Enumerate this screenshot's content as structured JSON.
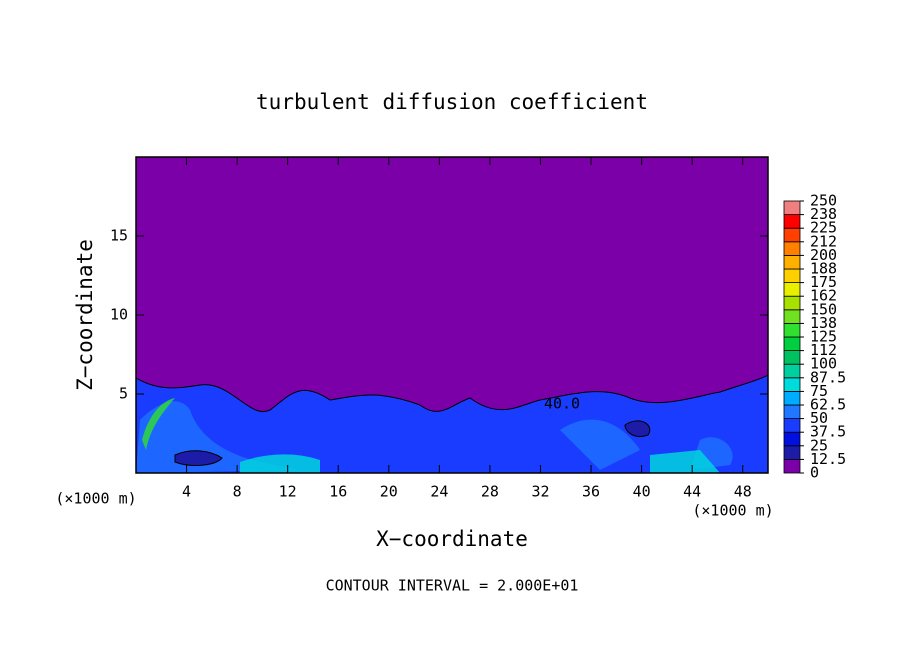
{
  "chart_data": {
    "type": "contour",
    "title": "turbulent diffusion coefficient",
    "xlabel": "X−coordinate",
    "ylabel": "Z−coordinate",
    "x_unit_label": "(×1000 m)",
    "x_unit_label_right": "(×1000 m)",
    "annotation": "CONTOUR INTERVAL = 2.000E+01",
    "contour_label": "40.0",
    "xlim": [
      0,
      50
    ],
    "xticks": [
      4,
      8,
      12,
      16,
      20,
      24,
      28,
      32,
      36,
      40,
      44,
      48
    ],
    "ylim": [
      0,
      20
    ],
    "yticks": [
      5,
      10,
      15
    ],
    "clim": [
      0,
      250
    ],
    "cticks": [
      0,
      12.5,
      25,
      37.5,
      50,
      62.5,
      75,
      87.5,
      100,
      {
        "value": 112.5,
        "label": "112"
      },
      125,
      {
        "value": 137.5,
        "label": "138"
      },
      150,
      {
        "value": 162.5,
        "label": "162"
      },
      175,
      {
        "value": 187.5,
        "label": "188"
      },
      200,
      {
        "value": 212.5,
        "label": "212"
      },
      225,
      {
        "value": 237.5,
        "label": "238"
      },
      250
    ],
    "colors": [
      "#7b00a8",
      "#1c1ca8",
      "#0010e0",
      "#1a3cff",
      "#1f78ff",
      "#00acff",
      "#00dcdc",
      "#00d0a0",
      "#00c060",
      "#00d040",
      "#30e030",
      "#70e020",
      "#a8e000",
      "#e8f000",
      "#ffd000",
      "#ffb000",
      "#ff8000",
      "#ff4000",
      "#ff0000",
      "#f08080"
    ]
  }
}
